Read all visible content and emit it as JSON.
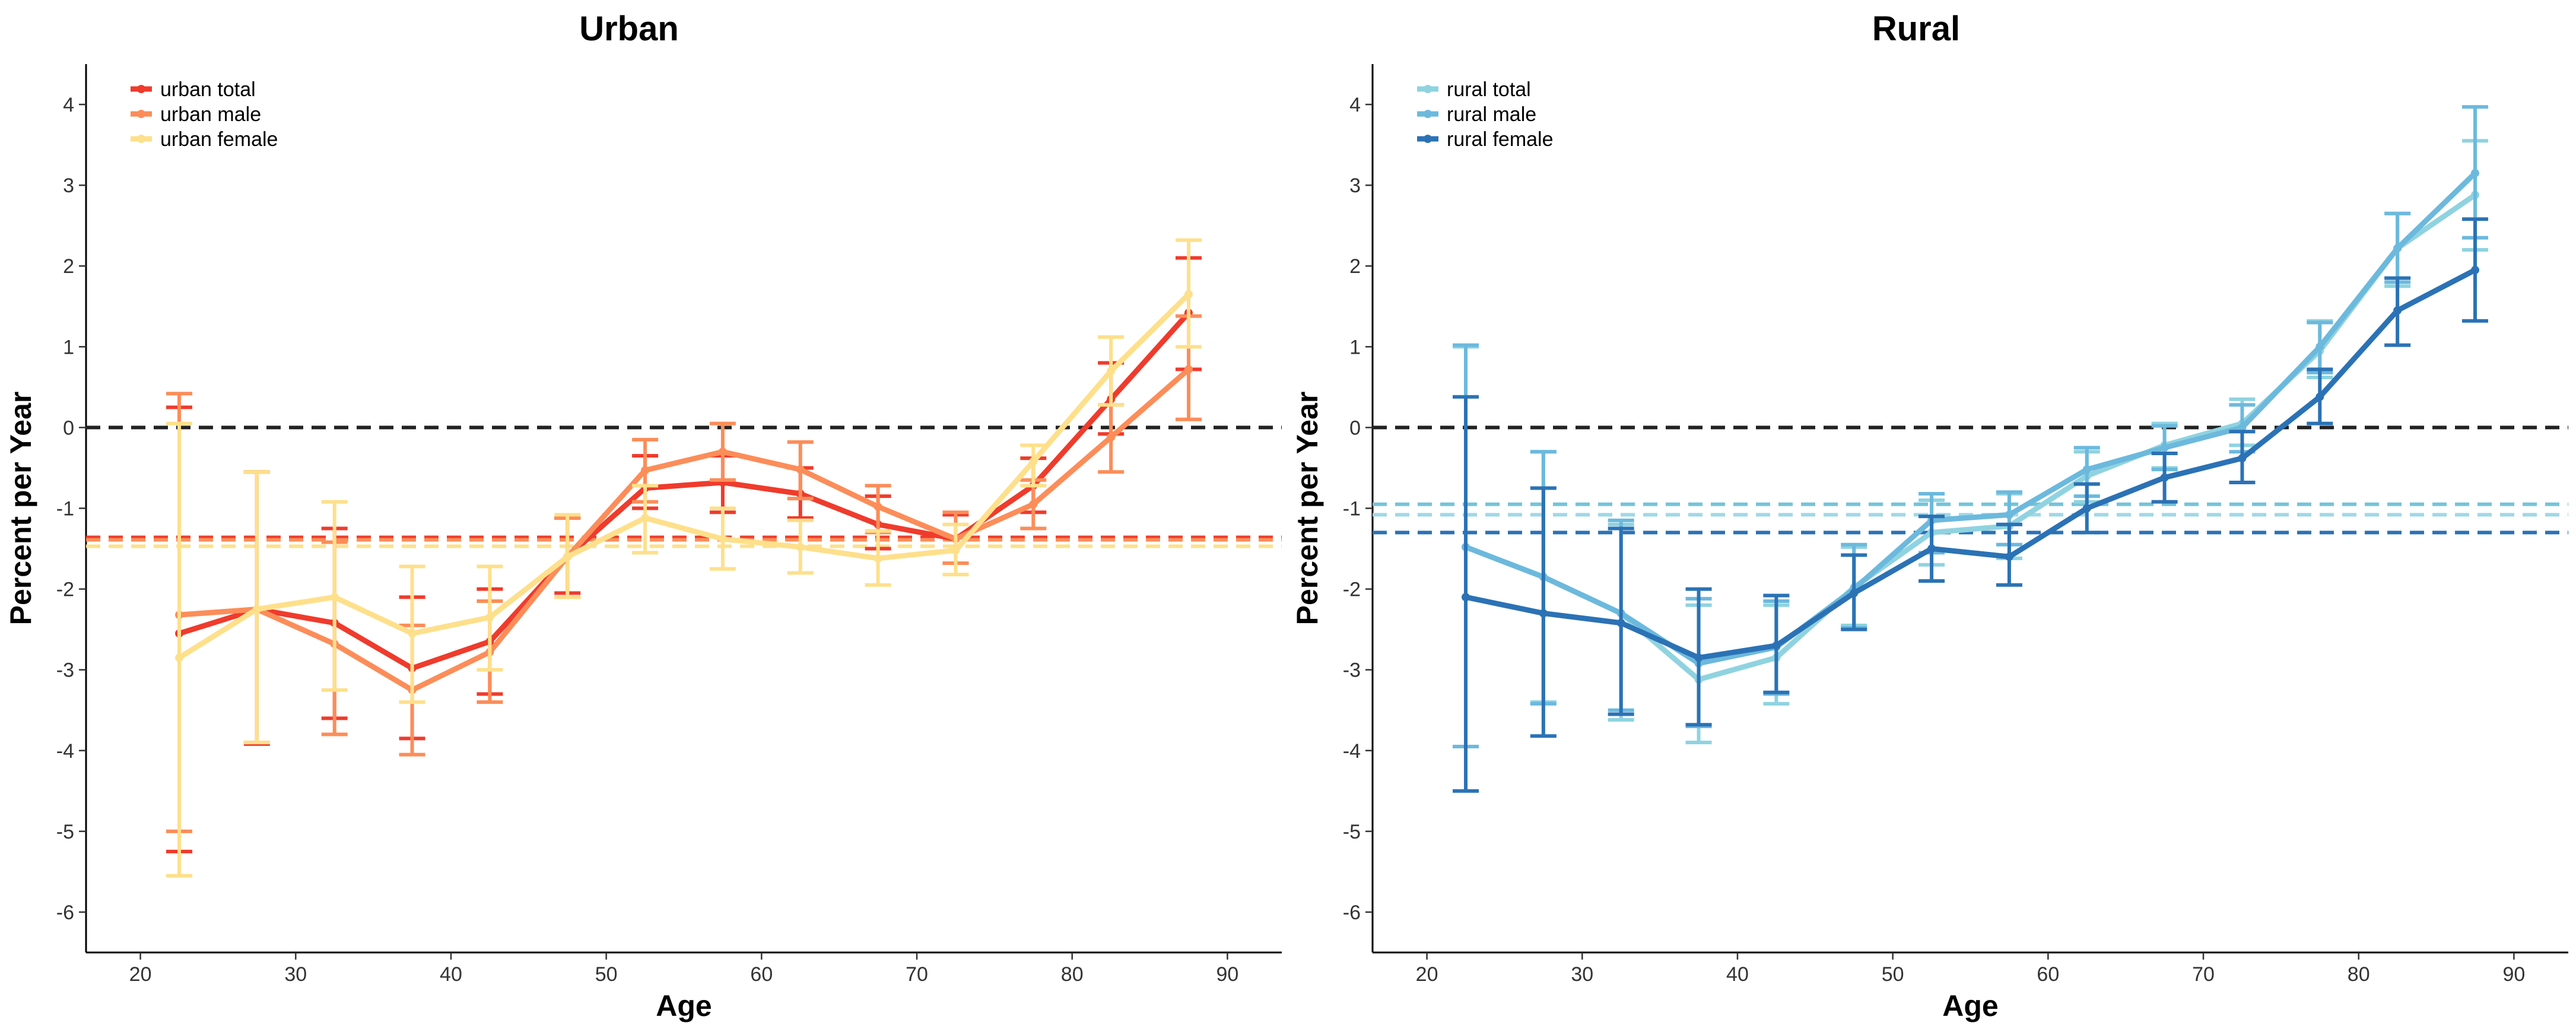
{
  "chart_data": [
    {
      "type": "line",
      "title": "Urban",
      "xlabel": "Age",
      "ylabel": "Percent per Year",
      "xlim": [
        16.5,
        93.5
      ],
      "ylim": [
        -6.5,
        4.5
      ],
      "xticks": [
        20,
        30,
        40,
        50,
        60,
        70,
        80,
        90
      ],
      "yticks": [
        -6,
        -5,
        -4,
        -3,
        -2,
        -1,
        0,
        1,
        2,
        3,
        4
      ],
      "grid": false,
      "legend_position": "top-left",
      "x": [
        22.5,
        27.5,
        32.5,
        37.5,
        42.5,
        47.5,
        52.5,
        57.5,
        62.5,
        67.5,
        72.5,
        77.5,
        82.5,
        87.5
      ],
      "reference_lines": [
        {
          "y": 0,
          "color": "#222222"
        },
        {
          "y": -1.36,
          "color": "#ef3b2c"
        },
        {
          "y": -1.39,
          "color": "#fc8d59"
        },
        {
          "y": -1.47,
          "color": "#fee08b"
        }
      ],
      "series": [
        {
          "name": "urban total",
          "color": "#ef3b2c",
          "values": [
            -2.55,
            -2.25,
            -2.42,
            -2.98,
            -2.65,
            -1.6,
            -0.75,
            -0.68,
            -0.82,
            -1.2,
            -1.38,
            -0.72,
            0.35,
            1.42
          ],
          "lower": [
            -5.25,
            -3.92,
            -3.6,
            -3.85,
            -3.3,
            -2.05,
            -1.0,
            -1.05,
            -1.12,
            -1.5,
            -1.68,
            -1.05,
            -0.08,
            0.72
          ],
          "upper": [
            0.25,
            -0.55,
            -1.25,
            -2.1,
            -2.0,
            -1.12,
            -0.35,
            -0.35,
            -0.5,
            -0.85,
            -1.08,
            -0.38,
            0.8,
            2.1
          ]
        },
        {
          "name": "urban male",
          "color": "#fc8d59",
          "values": [
            -2.32,
            -2.25,
            -2.68,
            -3.25,
            -2.78,
            -1.6,
            -0.53,
            -0.3,
            -0.52,
            -0.98,
            -1.38,
            -0.95,
            -0.12,
            0.72
          ],
          "lower": [
            -5.0,
            -3.9,
            -3.8,
            -4.05,
            -3.4,
            -2.1,
            -0.92,
            -0.65,
            -0.88,
            -1.3,
            -1.68,
            -1.25,
            -0.55,
            0.1
          ],
          "upper": [
            0.42,
            -0.55,
            -1.42,
            -2.45,
            -2.15,
            -1.12,
            -0.15,
            0.05,
            -0.18,
            -0.72,
            -1.05,
            -0.65,
            0.28,
            1.38
          ]
        },
        {
          "name": "urban female",
          "color": "#fee08b",
          "values": [
            -2.85,
            -2.25,
            -2.1,
            -2.55,
            -2.35,
            -1.6,
            -1.12,
            -1.38,
            -1.48,
            -1.62,
            -1.52,
            -0.42,
            0.7,
            1.65
          ],
          "lower": [
            -5.55,
            -3.9,
            -3.25,
            -3.4,
            -3.0,
            -2.1,
            -1.55,
            -1.75,
            -1.8,
            -1.95,
            -1.82,
            -0.72,
            0.28,
            1.0
          ],
          "upper": [
            0.05,
            -0.55,
            -0.92,
            -1.72,
            -1.72,
            -1.08,
            -0.72,
            -1.0,
            -1.15,
            -1.28,
            -1.2,
            -0.22,
            1.12,
            2.32
          ]
        }
      ]
    },
    {
      "type": "line",
      "title": "Rural",
      "xlabel": "Age",
      "ylabel": "Percent per Year",
      "xlim": [
        16.5,
        93.5
      ],
      "ylim": [
        -6.5,
        4.5
      ],
      "xticks": [
        20,
        30,
        40,
        50,
        60,
        70,
        80,
        90
      ],
      "yticks": [
        -6,
        -5,
        -4,
        -3,
        -2,
        -1,
        0,
        1,
        2,
        3,
        4
      ],
      "grid": false,
      "legend_position": "top-left",
      "x": [
        22.5,
        27.5,
        32.5,
        37.5,
        42.5,
        47.5,
        52.5,
        57.5,
        62.5,
        67.5,
        72.5,
        77.5,
        82.5,
        87.5
      ],
      "reference_lines": [
        {
          "y": 0,
          "color": "#222222"
        },
        {
          "y": -0.95,
          "color": "#74c4d9"
        },
        {
          "y": -1.08,
          "color": "#9fd8e6"
        },
        {
          "y": -1.3,
          "color": "#2b72b5"
        }
      ],
      "series": [
        {
          "name": "rural total",
          "color": "#8fd3e0",
          "values": [
            -1.48,
            -1.85,
            -2.3,
            -3.12,
            -2.85,
            -1.98,
            -1.3,
            -1.22,
            -0.6,
            -0.22,
            0.05,
            0.95,
            2.22,
            2.88
          ],
          "lower": [
            -3.95,
            -3.4,
            -3.62,
            -3.9,
            -3.42,
            -2.45,
            -1.7,
            -1.62,
            -0.92,
            -0.5,
            -0.22,
            0.62,
            1.75,
            2.2
          ],
          "upper": [
            1.0,
            -0.3,
            -1.2,
            -2.2,
            -2.2,
            -1.48,
            -0.9,
            -0.82,
            -0.3,
            0.05,
            0.35,
            1.32,
            2.65,
            3.55
          ]
        },
        {
          "name": "rural male",
          "color": "#6cb9dd",
          "values": [
            -1.48,
            -1.85,
            -2.3,
            -2.92,
            -2.72,
            -2.0,
            -1.15,
            -1.08,
            -0.52,
            -0.25,
            0.0,
            1.0,
            2.22,
            3.15
          ],
          "lower": [
            -3.95,
            -3.42,
            -3.5,
            -3.7,
            -3.3,
            -2.48,
            -1.55,
            -1.45,
            -0.85,
            -0.52,
            -0.3,
            0.68,
            1.8,
            2.35
          ],
          "upper": [
            1.02,
            -0.3,
            -1.15,
            -2.12,
            -2.15,
            -1.45,
            -0.82,
            -0.8,
            -0.25,
            0.02,
            0.28,
            1.3,
            2.65,
            3.97
          ]
        },
        {
          "name": "rural female",
          "color": "#2b72b5",
          "values": [
            -2.1,
            -2.3,
            -2.42,
            -2.85,
            -2.7,
            -2.05,
            -1.5,
            -1.6,
            -1.0,
            -0.62,
            -0.38,
            0.38,
            1.45,
            1.95
          ],
          "lower": [
            -4.5,
            -3.82,
            -3.55,
            -3.68,
            -3.28,
            -2.5,
            -1.9,
            -1.95,
            -1.3,
            -0.92,
            -0.68,
            0.05,
            1.02,
            1.32
          ],
          "upper": [
            0.38,
            -0.75,
            -1.25,
            -2.0,
            -2.08,
            -1.58,
            -1.1,
            -1.2,
            -0.7,
            -0.32,
            -0.05,
            0.72,
            1.85,
            2.58
          ]
        }
      ]
    }
  ]
}
